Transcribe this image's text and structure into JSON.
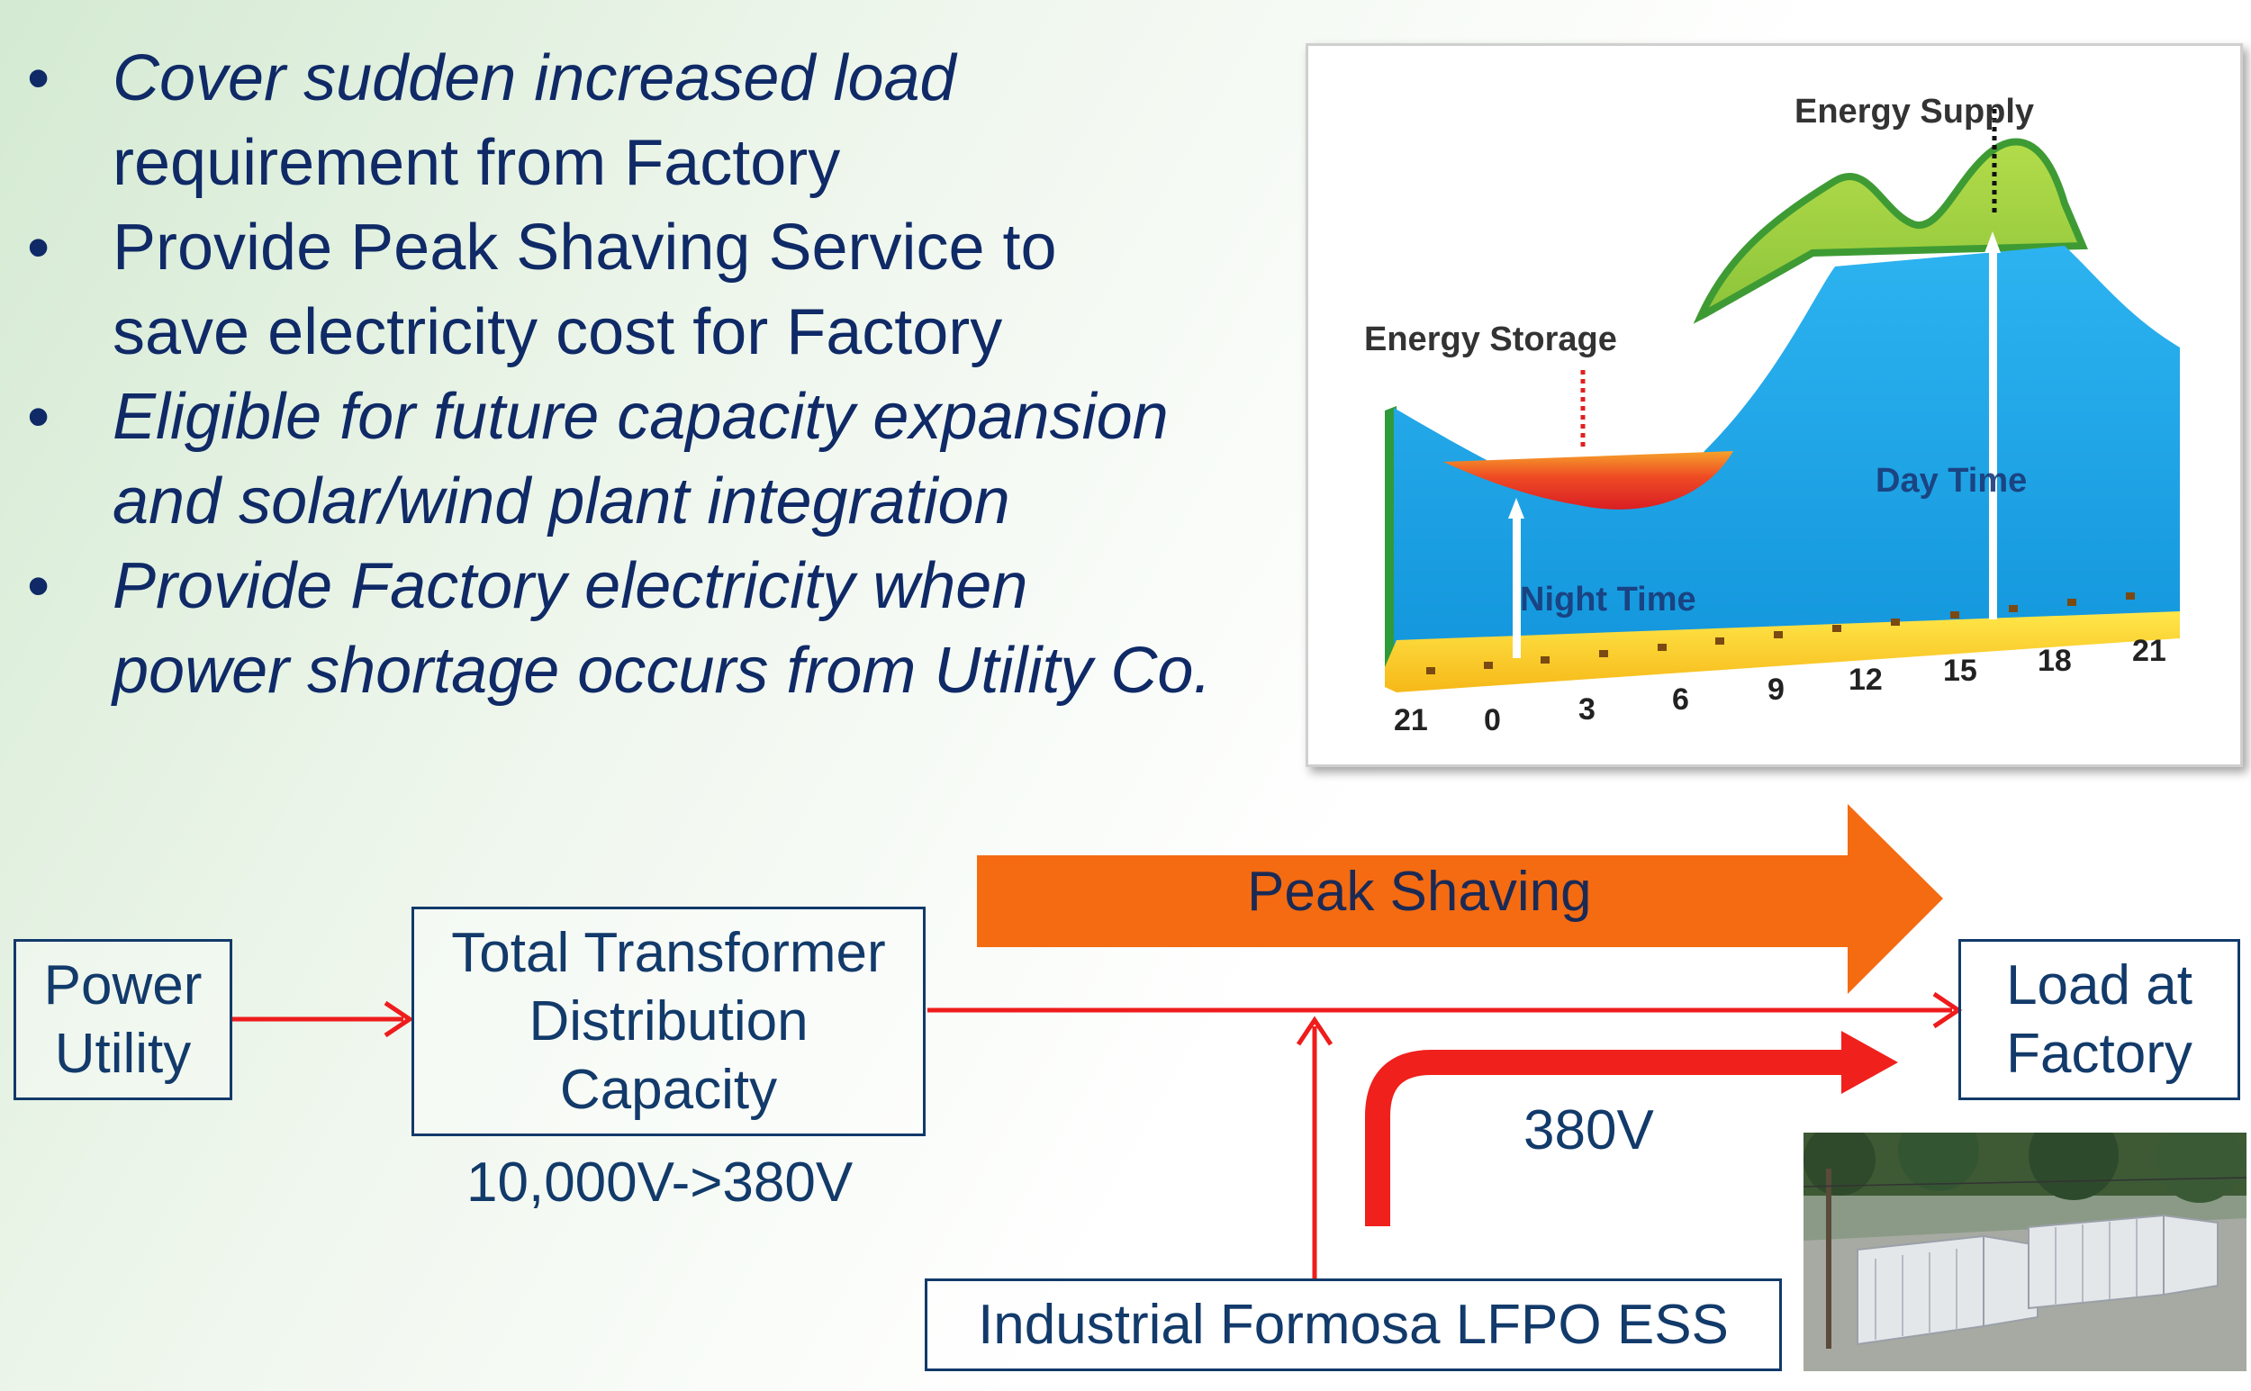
{
  "bullets": [
    {
      "marker": "•",
      "line1": "Cover sudden increased load",
      "line2": "requirement from Factory"
    },
    {
      "marker": "•",
      "line1": "Provide Peak Shaving Service to",
      "line2": "save electricity cost for Factory"
    },
    {
      "marker": "•",
      "line1": "Eligible for future capacity expansion",
      "line2": "and solar/wind plant integration"
    },
    {
      "marker": "•",
      "line1": "Provide Factory electricity when",
      "line2": "power shortage occurs from Utility Co."
    }
  ],
  "chart": {
    "energy_supply": "Energy Supply",
    "energy_storage": "Energy Storage",
    "day_time": "Day Time",
    "night_time": "Night Time",
    "hours": [
      "21",
      "0",
      "3",
      "6",
      "9",
      "12",
      "15",
      "18",
      "21"
    ]
  },
  "diagram": {
    "power_utility": [
      "Power",
      "Utility"
    ],
    "transformer": [
      "Total Transformer",
      "Distribution",
      "Capacity"
    ],
    "voltage_conversion": "10,000V->380V",
    "peak_shaving": "Peak Shaving",
    "load_factory": [
      "Load at",
      "Factory"
    ],
    "ess_voltage": "380V",
    "ess": "Industrial Formosa LFPO ESS"
  },
  "colors": {
    "text": "#123a6a",
    "arrow_red": "#ee1c1c",
    "peak_orange": "#f46b12",
    "chart_blue": "#1aa3e8",
    "chart_green": "#9acd3c",
    "storage_red": "#e8302a"
  }
}
